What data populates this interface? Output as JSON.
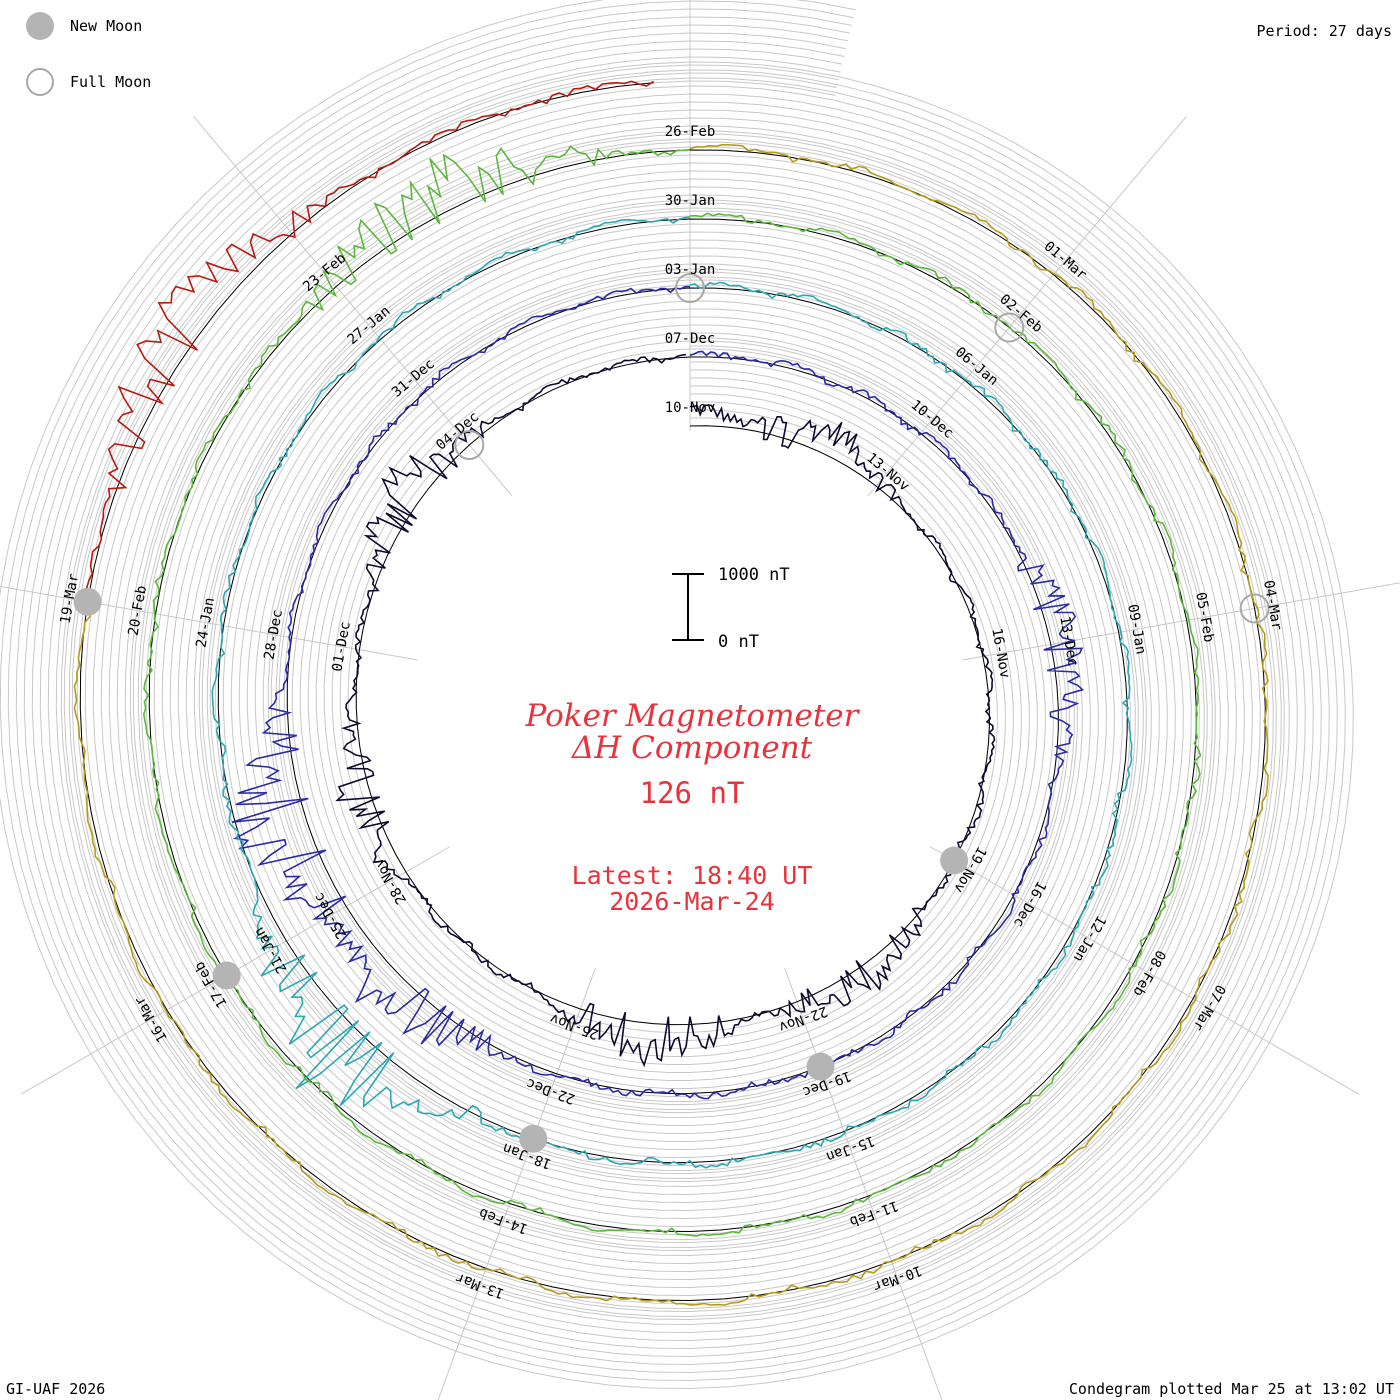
{
  "legend": {
    "new_moon_label": "New Moon",
    "full_moon_label": "Full Moon",
    "new_moon_color": "#b4b4b4",
    "full_moon_color": "#a8a8a8"
  },
  "header": {
    "period": "Period: 27 days"
  },
  "footer": {
    "credit": "GI-UAF 2026",
    "plotted": "Condegram plotted Mar 25 at 13:02 UT"
  },
  "center": {
    "title_line1": "Poker Magnetometer",
    "title_line2": "ΔH Component",
    "value": "126 nT",
    "latest": "Latest: 18:40 UT",
    "date": "2026-Mar-24",
    "text_color": "#e8323c"
  },
  "chart_data": {
    "type": "line",
    "layout": "condegram spiral (27-day period)",
    "scale_bar": {
      "top_label": "1000 nT",
      "bottom_label": "0 nT",
      "top_value": 1000,
      "bottom_value": 0
    },
    "date_labels": [
      "10-Nov",
      "13-Nov",
      "16-Nov",
      "19-Nov",
      "22-Nov",
      "25-Nov",
      "28-Nov",
      "01-Dec",
      "04-Dec",
      "07-Dec",
      "10-Dec",
      "13-Dec",
      "16-Dec",
      "19-Dec",
      "22-Dec",
      "25-Dec",
      "28-Dec",
      "31-Dec",
      "03-Jan",
      "06-Jan",
      "09-Jan",
      "12-Jan",
      "15-Jan",
      "18-Jan",
      "21-Jan",
      "24-Jan",
      "27-Jan",
      "30-Jan",
      "02-Feb",
      "05-Feb",
      "08-Feb",
      "11-Feb",
      "14-Feb",
      "17-Feb",
      "20-Feb",
      "23-Feb",
      "26-Feb",
      "01-Mar",
      "04-Mar",
      "07-Mar",
      "10-Mar",
      "13-Mar",
      "16-Mar",
      "19-Mar"
    ],
    "series": [
      {
        "start_date": "10-Nov",
        "color": "#100830"
      },
      {
        "start_date": "07-Dec",
        "color": "#2a2aa8"
      },
      {
        "start_date": "03-Jan",
        "color": "#2aa8b4"
      },
      {
        "start_date": "30-Jan",
        "color": "#5ab83a"
      },
      {
        "start_date": "26-Feb",
        "color": "#b89a1a"
      },
      {
        "start_date": "19-Mar",
        "color": "#b81a10"
      }
    ],
    "moon_markers": [
      {
        "phase": "new",
        "date": "19-Mar"
      },
      {
        "phase": "new",
        "date": "17-Feb"
      },
      {
        "phase": "new",
        "date": "18-Jan"
      },
      {
        "phase": "new",
        "date": "19-Dec"
      },
      {
        "phase": "new",
        "date": "19-Nov"
      },
      {
        "phase": "full",
        "date": "03-Jan"
      },
      {
        "phase": "full",
        "date": "02-Feb"
      },
      {
        "phase": "full",
        "date": "04-Mar"
      },
      {
        "phase": "full",
        "date": "04-Dec"
      }
    ],
    "approx_activity": [
      {
        "date": "10-Nov",
        "max_nT": 400
      },
      {
        "date": "12-Nov",
        "max_nT": 600
      },
      {
        "date": "21-Nov",
        "max_nT": 500
      },
      {
        "date": "24-Nov",
        "max_nT": 700
      },
      {
        "date": "29-Nov",
        "max_nT": 600
      },
      {
        "date": "03-Dec",
        "max_nT": 700
      },
      {
        "date": "13-Dec",
        "max_nT": 600
      },
      {
        "date": "24-Dec",
        "max_nT": 900
      },
      {
        "date": "26-Dec",
        "max_nT": 1300
      },
      {
        "date": "20-Jan",
        "max_nT": 1400
      },
      {
        "date": "24-Feb",
        "max_nT": 900
      },
      {
        "date": "21-Mar",
        "max_nT": 900
      }
    ]
  }
}
